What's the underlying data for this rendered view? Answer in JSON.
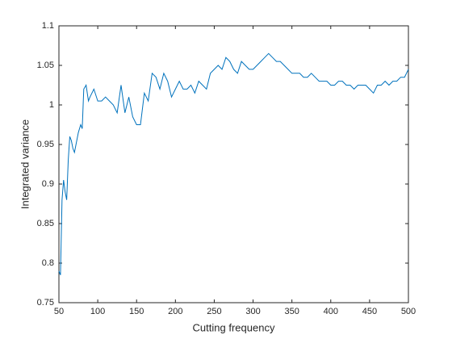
{
  "chart_data": {
    "type": "line",
    "xlabel": "Cutting frequency",
    "ylabel": "Integrated variance",
    "x": [
      50,
      52,
      54,
      56,
      58,
      60,
      62,
      64,
      66,
      68,
      70,
      72,
      75,
      78,
      80,
      82,
      85,
      88,
      90,
      95,
      100,
      105,
      110,
      115,
      120,
      125,
      130,
      135,
      140,
      145,
      150,
      155,
      160,
      165,
      170,
      175,
      180,
      185,
      190,
      195,
      200,
      205,
      210,
      215,
      220,
      225,
      230,
      235,
      240,
      245,
      250,
      255,
      260,
      265,
      270,
      275,
      280,
      285,
      290,
      295,
      300,
      305,
      310,
      315,
      320,
      325,
      330,
      335,
      340,
      345,
      350,
      355,
      360,
      365,
      370,
      375,
      380,
      385,
      390,
      395,
      400,
      405,
      410,
      415,
      420,
      425,
      430,
      435,
      440,
      445,
      450,
      455,
      460,
      465,
      470,
      475,
      480,
      485,
      490,
      495,
      500
    ],
    "series": [
      {
        "color": "#0072bd",
        "values": [
          0.79,
          0.785,
          0.88,
          0.905,
          0.89,
          0.88,
          0.93,
          0.96,
          0.955,
          0.945,
          0.94,
          0.95,
          0.965,
          0.975,
          0.97,
          1.02,
          1.025,
          1.005,
          1.01,
          1.02,
          1.005,
          1.005,
          1.01,
          1.005,
          1.0,
          0.99,
          1.025,
          0.99,
          1.01,
          0.985,
          0.975,
          0.975,
          1.015,
          1.005,
          1.04,
          1.035,
          1.02,
          1.04,
          1.03,
          1.01,
          1.02,
          1.03,
          1.02,
          1.02,
          1.025,
          1.015,
          1.03,
          1.025,
          1.02,
          1.04,
          1.045,
          1.05,
          1.045,
          1.06,
          1.055,
          1.045,
          1.04,
          1.055,
          1.05,
          1.045,
          1.045,
          1.05,
          1.055,
          1.06,
          1.065,
          1.06,
          1.055,
          1.055,
          1.05,
          1.045,
          1.04,
          1.04,
          1.04,
          1.035,
          1.035,
          1.04,
          1.035,
          1.03,
          1.03,
          1.03,
          1.025,
          1.025,
          1.03,
          1.03,
          1.025,
          1.025,
          1.02,
          1.025,
          1.025,
          1.025,
          1.02,
          1.015,
          1.025,
          1.025,
          1.03,
          1.025,
          1.03,
          1.03,
          1.035,
          1.035,
          1.045
        ]
      }
    ],
    "xlim": [
      50,
      500
    ],
    "xticks": [
      50,
      100,
      150,
      200,
      250,
      300,
      350,
      400,
      450,
      500
    ],
    "ylim": [
      0.75,
      1.1
    ],
    "yticks": [
      0.75,
      0.8,
      0.85,
      0.9,
      0.95,
      1,
      1.05,
      1.1
    ]
  }
}
